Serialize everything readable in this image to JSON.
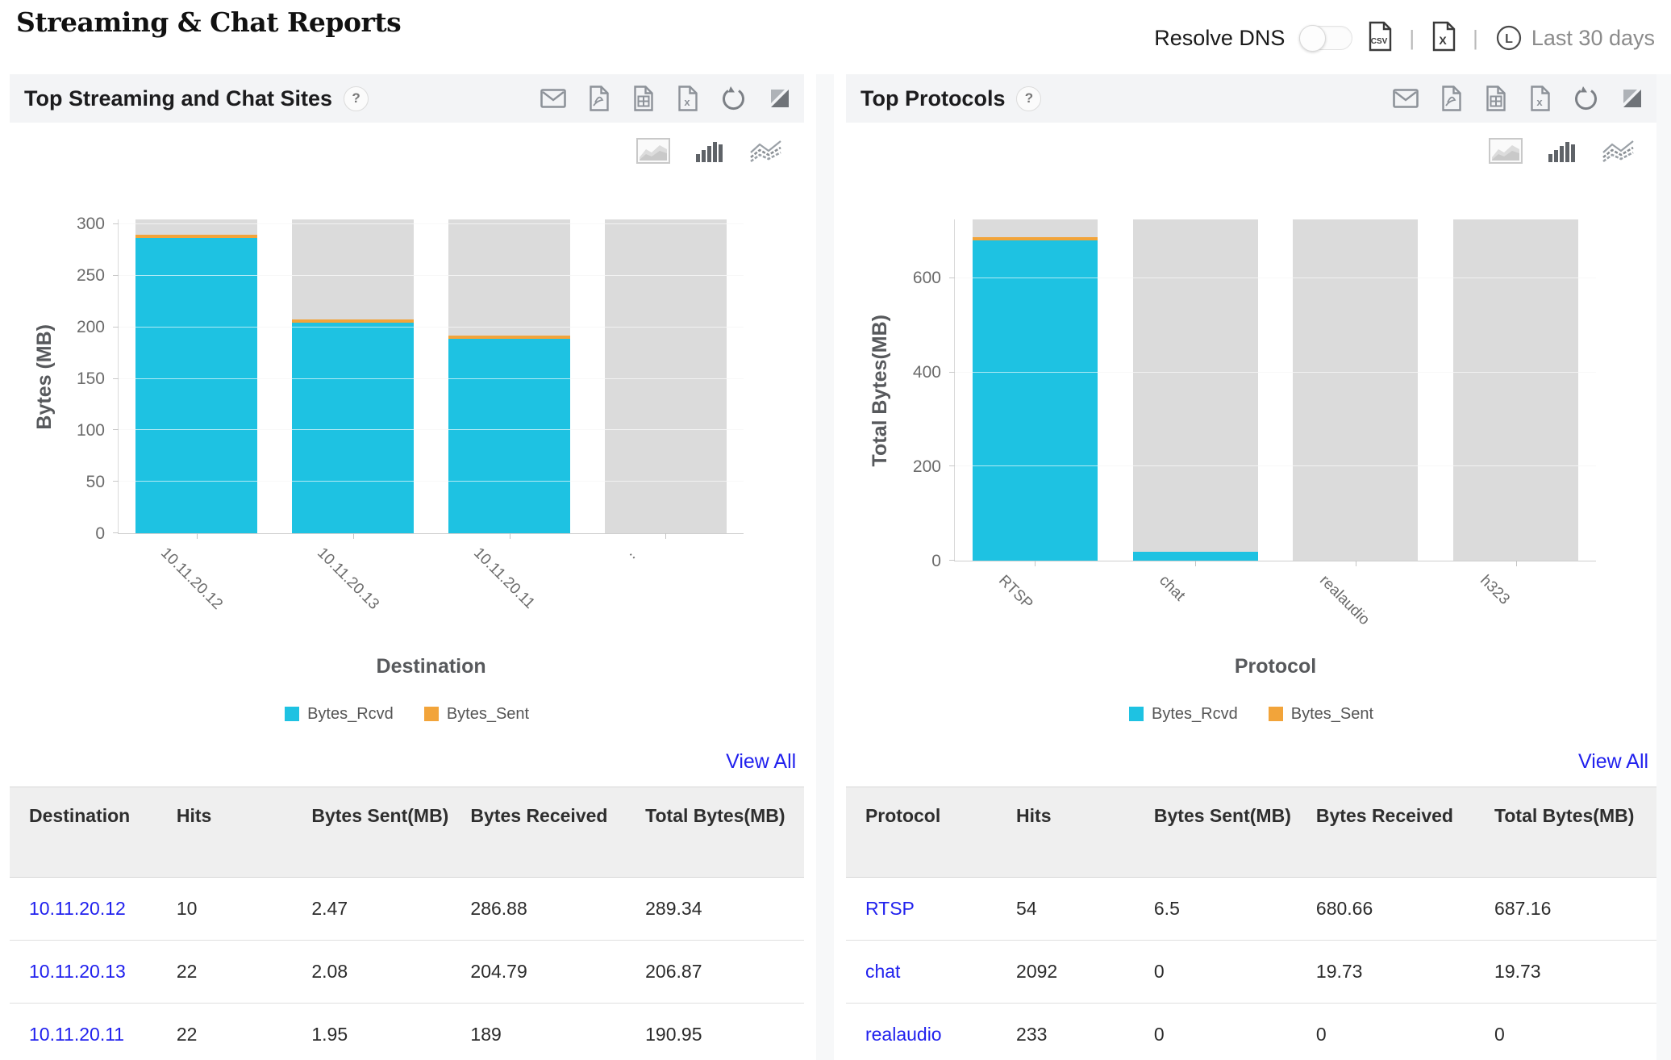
{
  "page": {
    "title": "Streaming & Chat Reports"
  },
  "topbar": {
    "resolve_dns_label": "Resolve DNS",
    "toggle_state": "off",
    "csv_label": "CSV",
    "excel_label": "X",
    "separator": "|",
    "clock_glyph": "L",
    "period_label": "Last 30 days"
  },
  "colors": {
    "bytes_rcvd": "#1EC2E2",
    "bytes_sent": "#F2A43A",
    "bar_background": "#DBDBDB",
    "link_blue": "#2121EE",
    "panel_header_bg": "#F3F4F6"
  },
  "panels": [
    {
      "title": "Top Streaming and Chat Sites",
      "help_label": "?",
      "view_all_label": "View All",
      "legend": [
        {
          "label": "Bytes_Rcvd",
          "color": "#1EC2E2"
        },
        {
          "label": "Bytes_Sent",
          "color": "#F2A43A"
        }
      ],
      "table": {
        "columns": [
          "Destination",
          "Hits",
          "Bytes Sent(MB)",
          "Bytes Received",
          "Total Bytes(MB)"
        ],
        "rows": [
          [
            "10.11.20.12",
            "10",
            "2.47",
            "286.88",
            "289.34"
          ],
          [
            "10.11.20.13",
            "22",
            "2.08",
            "204.79",
            "206.87"
          ],
          [
            "10.11.20.11",
            "22",
            "1.95",
            "189",
            "190.95"
          ]
        ]
      }
    },
    {
      "title": "Top Protocols",
      "help_label": "?",
      "view_all_label": "View All",
      "legend": [
        {
          "label": "Bytes_Rcvd",
          "color": "#1EC2E2"
        },
        {
          "label": "Bytes_Sent",
          "color": "#F2A43A"
        }
      ],
      "table": {
        "columns": [
          "Protocol",
          "Hits",
          "Bytes Sent(MB)",
          "Bytes Received",
          "Total Bytes(MB)"
        ],
        "rows": [
          [
            "RTSP",
            "54",
            "6.5",
            "680.66",
            "687.16"
          ],
          [
            "chat",
            "2092",
            "0",
            "19.73",
            "19.73"
          ],
          [
            "realaudio",
            "233",
            "0",
            "0",
            "0"
          ]
        ]
      }
    }
  ],
  "chart_data": [
    {
      "type": "bar",
      "stacked": true,
      "categories": [
        "10.11.20.12",
        "10.11.20.13",
        "10.11.20.11",
        ".."
      ],
      "series": [
        {
          "name": "Bytes_Rcvd",
          "color": "#1EC2E2",
          "values": [
            286.88,
            204.79,
            189,
            0
          ]
        },
        {
          "name": "Bytes_Sent",
          "color": "#F2A43A",
          "values": [
            2.47,
            2.08,
            1.95,
            0
          ]
        }
      ],
      "title": "Top Streaming and Chat Sites",
      "xlabel": "Destination",
      "ylabel": "Bytes (MB)",
      "ylim": [
        0,
        305
      ],
      "yticks": [
        0,
        50,
        100,
        150,
        200,
        250,
        300
      ],
      "grid": true,
      "legend_position": "bottom",
      "background_bars_full_height": true
    },
    {
      "type": "bar",
      "stacked": true,
      "categories": [
        "RTSP",
        "chat",
        "realaudio",
        "h323"
      ],
      "series": [
        {
          "name": "Bytes_Rcvd",
          "color": "#1EC2E2",
          "values": [
            680.66,
            19.73,
            0,
            0
          ]
        },
        {
          "name": "Bytes_Sent",
          "color": "#F2A43A",
          "values": [
            6.5,
            0,
            0,
            0
          ]
        }
      ],
      "title": "Top Protocols",
      "xlabel": "Protocol",
      "ylabel": "Total Bytes(MB)",
      "ylim": [
        0,
        725
      ],
      "yticks": [
        0,
        200,
        400,
        600
      ],
      "grid": true,
      "legend_position": "bottom",
      "background_bars_full_height": true
    }
  ]
}
